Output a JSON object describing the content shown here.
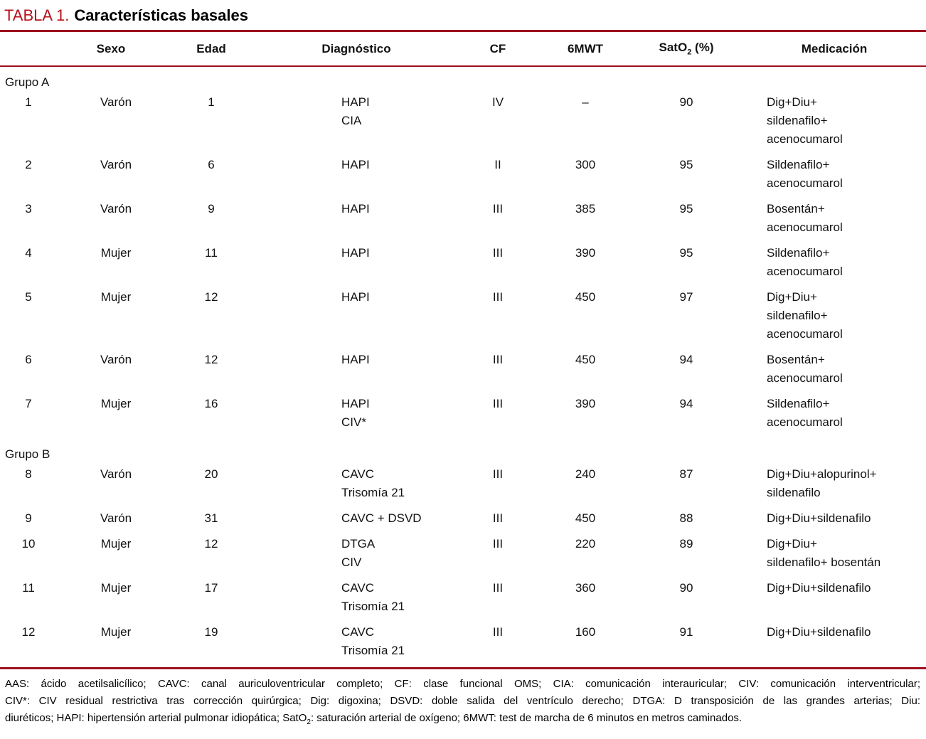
{
  "colors": {
    "title_red": "#b5121c",
    "rule_red": "#9e101e"
  },
  "title": {
    "tag": "TABLA 1.",
    "text": "Características basales"
  },
  "columns": {
    "num": "",
    "sexo": "Sexo",
    "edad": "Edad",
    "diagnostico": "Diagnóstico",
    "cf": "CF",
    "mwt": "6MWT",
    "sato2_pre": "SatO",
    "sato2_sub": "2",
    "sato2_post": " (%)",
    "medicacion": "Medicación"
  },
  "groups": [
    {
      "label": "Grupo A",
      "rows": [
        {
          "id": "1",
          "sexo": "Varón",
          "edad": "1",
          "diagnostico": [
            "HAPI",
            "CIA"
          ],
          "cf": "IV",
          "mwt": "–",
          "sato2": "90",
          "medicacion": [
            "Dig+Diu+",
            "sildenafilo+",
            "acenocumarol"
          ]
        },
        {
          "id": "2",
          "sexo": "Varón",
          "edad": "6",
          "diagnostico": [
            "HAPI"
          ],
          "cf": "II",
          "mwt": "300",
          "sato2": "95",
          "medicacion": [
            "Sildenafilo+",
            "acenocumarol"
          ]
        },
        {
          "id": "3",
          "sexo": "Varón",
          "edad": "9",
          "diagnostico": [
            "HAPI"
          ],
          "cf": "III",
          "mwt": "385",
          "sato2": "95",
          "medicacion": [
            "Bosentán+",
            "acenocumarol"
          ]
        },
        {
          "id": "4",
          "sexo": "Mujer",
          "edad": "11",
          "diagnostico": [
            "HAPI"
          ],
          "cf": "III",
          "mwt": "390",
          "sato2": "95",
          "medicacion": [
            "Sildenafilo+",
            "acenocumarol"
          ]
        },
        {
          "id": "5",
          "sexo": "Mujer",
          "edad": "12",
          "diagnostico": [
            "HAPI"
          ],
          "cf": "III",
          "mwt": "450",
          "sato2": "97",
          "medicacion": [
            "Dig+Diu+",
            "sildenafilo+",
            "acenocumarol"
          ]
        },
        {
          "id": "6",
          "sexo": "Varón",
          "edad": "12",
          "diagnostico": [
            "HAPI"
          ],
          "cf": "III",
          "mwt": "450",
          "sato2": "94",
          "medicacion": [
            "Bosentán+",
            "acenocumarol"
          ]
        },
        {
          "id": "7",
          "sexo": "Mujer",
          "edad": "16",
          "diagnostico": [
            "HAPI",
            "CIV*"
          ],
          "cf": "III",
          "mwt": "390",
          "sato2": "94",
          "medicacion": [
            "Sildenafilo+",
            "acenocumarol"
          ]
        }
      ]
    },
    {
      "label": "Grupo B",
      "rows": [
        {
          "id": "8",
          "sexo": "Varón",
          "edad": "20",
          "diagnostico": [
            "CAVC",
            "Trisomía 21"
          ],
          "cf": "III",
          "mwt": "240",
          "sato2": "87",
          "medicacion": [
            "Dig+Diu+alopurinol+",
            "sildenafilo"
          ]
        },
        {
          "id": "9",
          "sexo": "Varón",
          "edad": "31",
          "diagnostico": [
            "CAVC + DSVD"
          ],
          "cf": "III",
          "mwt": "450",
          "sato2": "88",
          "medicacion": [
            "Dig+Diu+sildenafilo"
          ]
        },
        {
          "id": "10",
          "sexo": "Mujer",
          "edad": "12",
          "diagnostico": [
            "DTGA",
            "CIV"
          ],
          "cf": "III",
          "mwt": "220",
          "sato2": "89",
          "medicacion": [
            "Dig+Diu+",
            "sildenafilo+ bosentán"
          ]
        },
        {
          "id": "11",
          "sexo": "Mujer",
          "edad": "17",
          "diagnostico": [
            "CAVC",
            "Trisomía 21"
          ],
          "cf": "III",
          "mwt": "360",
          "sato2": "90",
          "medicacion": [
            "Dig+Diu+sildenafilo"
          ]
        },
        {
          "id": "12",
          "sexo": "Mujer",
          "edad": "19",
          "diagnostico": [
            "CAVC",
            "Trisomía 21"
          ],
          "cf": "III",
          "mwt": "160",
          "sato2": "91",
          "medicacion": [
            "Dig+Diu+sildenafilo"
          ]
        }
      ]
    }
  ],
  "footnote": {
    "line1": "AAS: ácido acetilsalicílico; CAVC: canal auriculoventricular completo; CF: clase funcional OMS; CIA: comunicación interauricular; CIV: comunicación interventricular;",
    "line2": "CIV*: CIV residual restrictiva tras corrección quirúrgica; Dig: digoxina; DSVD: doble salida del ventrículo derecho; DTGA: D transposición de las grandes arterias; Diu:",
    "line3_pre": "diuréticos; HAPI: hipertensión arterial pulmonar idiopática; SatO",
    "line3_sub": "2",
    "line3_post": ": saturación arterial de oxígeno; 6MWT: test de marcha de 6 minutos en metros caminados."
  }
}
